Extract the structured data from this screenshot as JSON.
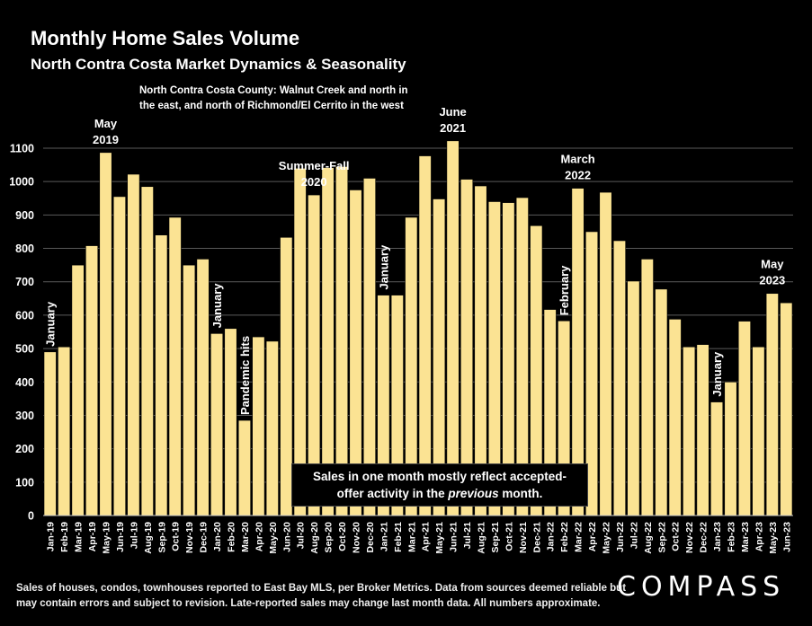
{
  "chart_data": {
    "type": "bar",
    "title": "Monthly Home Sales Volume",
    "subtitle": "North Contra Costa Market Dynamics & Seasonality",
    "scope_note": [
      "North Contra Costa County: Walnut Creek and north in",
      "the east, and north of Richmond/El Cerrito in the west"
    ],
    "ylim": [
      0,
      1100
    ],
    "yticks": [
      0,
      100,
      200,
      300,
      400,
      500,
      600,
      700,
      800,
      900,
      1000,
      1100
    ],
    "grid": true,
    "categories": [
      "Jan-19",
      "Feb-19",
      "Mar-19",
      "Apr-19",
      "May-19",
      "Jun-19",
      "Jul-19",
      "Aug-19",
      "Sep-19",
      "Oct-19",
      "Nov-19",
      "Dec-19",
      "Jan-20",
      "Feb-20",
      "Mar-20",
      "Apr-20",
      "May-20",
      "Jun-20",
      "Jul-20",
      "Aug-20",
      "Sep-20",
      "Oct-20",
      "Nov-20",
      "Dec-20",
      "Jan-21",
      "Feb-21",
      "Mar-21",
      "Apr-21",
      "May-21",
      "Jun-21",
      "Jul-21",
      "Aug-21",
      "Sep-21",
      "Oct-21",
      "Nov-21",
      "Dec-21",
      "Jan-22",
      "Feb-22",
      "Mar-22",
      "Apr-22",
      "May-22",
      "Jun-22",
      "Jul-22",
      "Aug-22",
      "Sep-22",
      "Oct-22",
      "Nov-22",
      "Dec-22",
      "Jan-23",
      "Feb-23",
      "Mar-23",
      "Apr-23",
      "May-23",
      "Jun-23"
    ],
    "values": [
      490,
      505,
      750,
      808,
      1087,
      955,
      1022,
      985,
      840,
      893,
      750,
      768,
      545,
      560,
      285,
      535,
      522,
      833,
      1040,
      960,
      1042,
      1045,
      975,
      1010,
      660,
      660,
      893,
      1077,
      948,
      1122,
      1007,
      987,
      940,
      937,
      952,
      868,
      617,
      583,
      980,
      850,
      968,
      823,
      702,
      768,
      678,
      588,
      505,
      512,
      340,
      400,
      582,
      505,
      665,
      637
    ],
    "annotations": [
      {
        "index": 0,
        "orientation": "vertical",
        "lines": [
          "January"
        ]
      },
      {
        "index": 4,
        "orientation": "horizontal",
        "lines": [
          "May",
          "2019"
        ]
      },
      {
        "index": 12,
        "orientation": "vertical",
        "lines": [
          "January"
        ]
      },
      {
        "index": 14,
        "orientation": "vertical",
        "lines": [
          "Pandemic hits"
        ]
      },
      {
        "index": 19,
        "orientation": "horizontal",
        "lines": [
          "Summer-Fall",
          "2020"
        ]
      },
      {
        "index": 24,
        "orientation": "vertical",
        "lines": [
          "January"
        ]
      },
      {
        "index": 29,
        "orientation": "horizontal",
        "lines": [
          "June",
          "2021"
        ]
      },
      {
        "index": 37,
        "orientation": "vertical",
        "lines": [
          "February"
        ]
      },
      {
        "index": 38,
        "orientation": "horizontal",
        "lines": [
          "March",
          "2022"
        ]
      },
      {
        "index": 48,
        "orientation": "vertical",
        "lines": [
          "January"
        ]
      },
      {
        "index": 52,
        "orientation": "horizontal",
        "lines": [
          "May",
          "2023"
        ]
      }
    ],
    "bar_color": "#fbe393"
  },
  "note": {
    "line1": "Sales in one month mostly reflect accepted-",
    "line2_pre": "offer activity in the ",
    "line2_em": "previous",
    "line2_post": " month."
  },
  "footer": {
    "line1": "Sales of houses, condos, townhouses reported to East Bay MLS, per Broker Metrics. Data from sources deemed reliable but",
    "line2": "may contain errors and subject to revision. Late-reported sales may change last month data. All numbers approximate."
  },
  "brand": "COMPASS"
}
